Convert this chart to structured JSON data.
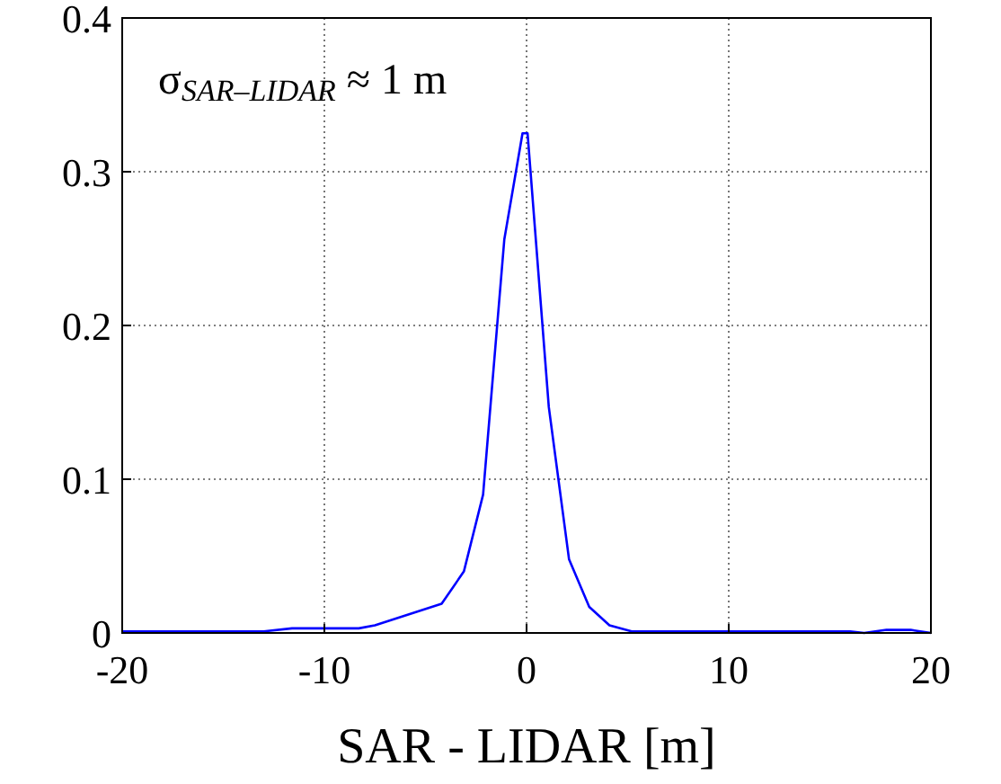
{
  "chart_data": {
    "type": "line",
    "xlabel": "SAR - LIDAR [m]",
    "annotations": [
      "σ$_{SAR–LIDAR}$ ≈ 1 m"
    ],
    "x": [
      -20,
      -13,
      -11.6,
      -8.3,
      -7.5,
      -4.2,
      -3.1,
      -2.15,
      -1.1,
      -0.2,
      0.05,
      1.1,
      2.1,
      3.1,
      4.1,
      5.2,
      16,
      16.7,
      17.8,
      19,
      20
    ],
    "series": [
      {
        "color": "#0000ff",
        "values": [
          0.001,
          0.001,
          0.003,
          0.003,
          0.005,
          0.019,
          0.04,
          0.09,
          0.256,
          0.325,
          0.325,
          0.147,
          0.048,
          0.017,
          0.005,
          0.001,
          0.001,
          0,
          0.002,
          0.002,
          0
        ]
      }
    ],
    "xlim": [
      -20,
      20
    ],
    "xticks": [
      -20,
      -10,
      0,
      10,
      20
    ],
    "ylim": [
      0,
      0.4
    ],
    "yticks": [
      0,
      0.1,
      0.2,
      0.3,
      0.4
    ],
    "grid": true,
    "line_style": "solid",
    "marker": "none"
  }
}
